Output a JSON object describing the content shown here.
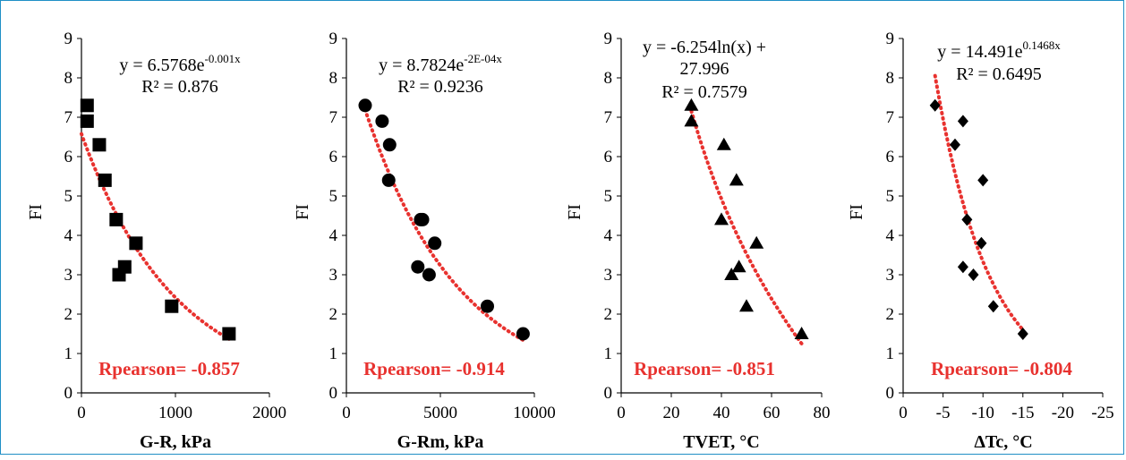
{
  "chart_data": [
    {
      "type": "scatter",
      "xlabel": "G-R, kPa",
      "ylabel": "FI",
      "xlim": [
        0,
        2000
      ],
      "ylim": [
        0,
        9
      ],
      "x_ticks": [
        "0",
        "1000",
        "2000"
      ],
      "y_ticks": [
        "0",
        "1",
        "2",
        "3",
        "4",
        "5",
        "6",
        "7",
        "8",
        "9"
      ],
      "marker": "square",
      "x": [
        60,
        60,
        190,
        250,
        370,
        580,
        460,
        400,
        960,
        1570
      ],
      "y": [
        7.3,
        6.9,
        6.3,
        5.4,
        4.4,
        3.8,
        3.2,
        3.0,
        2.2,
        1.5
      ],
      "trendline": {
        "kind": "exponential",
        "a": 6.5768,
        "b": -0.001,
        "x_range": [
          0,
          1570
        ]
      },
      "equation_lines": [
        {
          "text": "y = 6.5768e",
          "sup": "-0.001x"
        }
      ],
      "r2_text": "R² = 0.876",
      "pearson_text": "Rpearson= -0.857"
    },
    {
      "type": "scatter",
      "xlabel": "G-Rm, kPa",
      "ylabel": "FI",
      "xlim": [
        0,
        10000
      ],
      "ylim": [
        0,
        9
      ],
      "x_ticks": [
        "0",
        "5000",
        "10000"
      ],
      "y_ticks": [
        "0",
        "1",
        "2",
        "3",
        "4",
        "5",
        "6",
        "7",
        "8",
        "9"
      ],
      "marker": "circle",
      "x": [
        1000,
        1900,
        2300,
        2250,
        3950,
        4050,
        4700,
        3800,
        4400,
        7500,
        9400
      ],
      "y": [
        7.3,
        6.9,
        6.3,
        5.4,
        4.4,
        4.4,
        3.8,
        3.2,
        3.0,
        2.2,
        1.5
      ],
      "trendline": {
        "kind": "exponential",
        "a": 8.7824,
        "b": -0.0002,
        "x_range": [
          1000,
          9400
        ]
      },
      "equation_lines": [
        {
          "text": "y = 8.7824e",
          "sup": "-2E-04x"
        }
      ],
      "r2_text": "R² = 0.9236",
      "pearson_text": "Rpearson= -0.914"
    },
    {
      "type": "scatter",
      "xlabel": "TVET, °C",
      "ylabel": "FI",
      "xlim": [
        0,
        80
      ],
      "ylim": [
        0,
        9
      ],
      "x_ticks": [
        "0",
        "20",
        "40",
        "60",
        "80"
      ],
      "y_ticks": [
        "0",
        "1",
        "2",
        "3",
        "4",
        "5",
        "6",
        "7",
        "8",
        "9"
      ],
      "marker": "triangle",
      "x": [
        28,
        28,
        41,
        40,
        46,
        54,
        47,
        44,
        50,
        72
      ],
      "y": [
        7.3,
        6.9,
        6.3,
        4.4,
        5.4,
        3.8,
        3.2,
        3.0,
        2.2,
        1.5
      ],
      "trendline": {
        "kind": "logarithmic",
        "a": -6.254,
        "b": 27.996,
        "x_range": [
          28,
          72
        ]
      },
      "equation_lines": [
        {
          "text": "y = -6.254ln(x) +",
          "sup": ""
        },
        {
          "text": "27.996",
          "sup": ""
        }
      ],
      "r2_text": "R² = 0.7579",
      "pearson_text": "Rpearson= -0.851"
    },
    {
      "type": "scatter",
      "xlabel": "ΔTc, °C",
      "ylabel": "FI",
      "xlim": [
        0,
        -25
      ],
      "ylim": [
        0,
        9
      ],
      "x_ticks": [
        "0",
        "-5",
        "-10",
        "-15",
        "-20",
        "-25"
      ],
      "y_ticks": [
        "0",
        "1",
        "2",
        "3",
        "4",
        "5",
        "6",
        "7",
        "8",
        "9"
      ],
      "marker": "diamond",
      "x": [
        -4,
        -7.5,
        -6.5,
        -10,
        -8,
        -9.8,
        -7.5,
        -8.8,
        -11.3,
        -15
      ],
      "y": [
        7.3,
        6.9,
        6.3,
        5.4,
        4.4,
        3.8,
        3.2,
        3.0,
        2.2,
        1.5
      ],
      "trendline": {
        "kind": "exponential_abs",
        "a": 14.491,
        "b": 0.1468,
        "x_range": [
          -4,
          -15
        ]
      },
      "equation_lines": [
        {
          "text": "y = 14.491e",
          "sup": "0.1468x"
        }
      ],
      "r2_text": "R² = 0.6495",
      "pearson_text": "Rpearson= -0.804"
    }
  ],
  "colors": {
    "trendline": "#e8322f",
    "pearson": "#e8322f",
    "markers": "#000000",
    "frame": "#1f8fc6"
  }
}
